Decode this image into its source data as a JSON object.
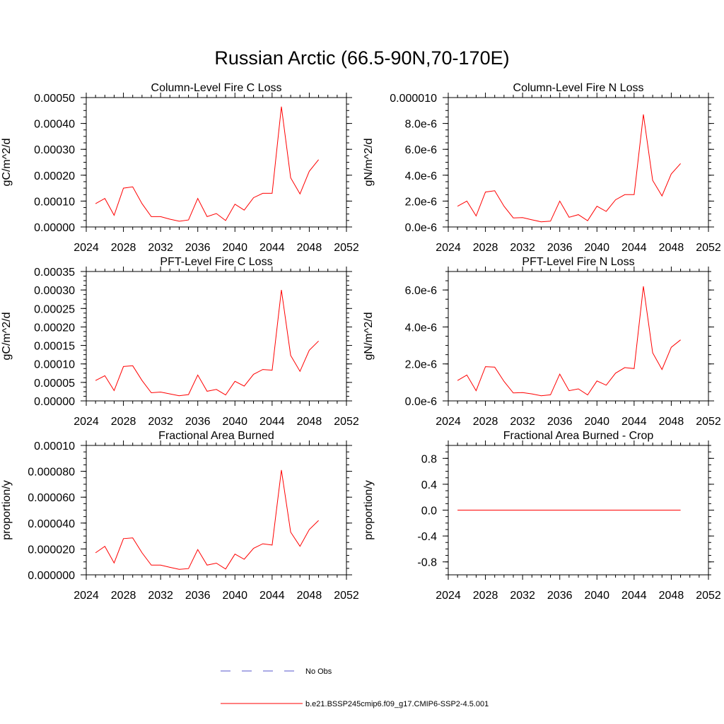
{
  "figure": {
    "title": "Russian Arctic (66.5-90N,70-170E)"
  },
  "legend": {
    "items": [
      {
        "label": "No Obs",
        "color": "#5555cc",
        "style": "dashed"
      },
      {
        "label": "b.e21.BSSP245cmip6.f09_g17.CMIP6-SSP2-4.5.001",
        "color": "#ff0000",
        "style": "solid"
      }
    ]
  },
  "chart_data": [
    {
      "type": "line",
      "title": "Column-Level Fire C Loss",
      "ylabel": "gC/m^2/d",
      "xlim": [
        2024,
        2052
      ],
      "ylim": [
        0,
        0.0005
      ],
      "xticks": [
        "2024",
        "2028",
        "2032",
        "2036",
        "2040",
        "2044",
        "2048",
        "2052"
      ],
      "yticks": [
        {
          "value": 0,
          "label": "0.00000"
        },
        {
          "value": 0.0001,
          "label": "0.00010"
        },
        {
          "value": 0.0002,
          "label": "0.00020"
        },
        {
          "value": 0.0003,
          "label": "0.00030"
        },
        {
          "value": 0.0004,
          "label": "0.00040"
        },
        {
          "value": 0.0005,
          "label": "0.00050"
        }
      ],
      "series": [
        {
          "color": "#ff0000",
          "x": [
            2025,
            2026,
            2027,
            2028,
            2029,
            2030,
            2031,
            2032,
            2033,
            2034,
            2035,
            2036,
            2037,
            2038,
            2039,
            2040,
            2041,
            2042,
            2043,
            2044,
            2045,
            2046,
            2047,
            2048,
            2049
          ],
          "y": [
            9e-05,
            0.00011,
            4.5e-05,
            0.00015,
            0.000155,
            9e-05,
            4e-05,
            4e-05,
            3e-05,
            2.2e-05,
            2.7e-05,
            0.00011,
            4e-05,
            5.2e-05,
            2.5e-05,
            8.8e-05,
            6.5e-05,
            0.000113,
            0.00013,
            0.00013,
            0.000465,
            0.00019,
            0.000128,
            0.000215,
            0.00026
          ]
        }
      ]
    },
    {
      "type": "line",
      "title": "Column-Level Fire N Loss",
      "ylabel": "gN/m^2/d",
      "xlim": [
        2024,
        2052
      ],
      "ylim": [
        0,
        1e-05
      ],
      "xticks": [
        "2024",
        "2028",
        "2032",
        "2036",
        "2040",
        "2044",
        "2048",
        "2052"
      ],
      "yticks": [
        {
          "value": 0,
          "label": "0.0e-6"
        },
        {
          "value": 2e-06,
          "label": "2.0e-6"
        },
        {
          "value": 4e-06,
          "label": "4.0e-6"
        },
        {
          "value": 6e-06,
          "label": "6.0e-6"
        },
        {
          "value": 8e-06,
          "label": "8.0e-6"
        },
        {
          "value": 1e-05,
          "label": "0.000010"
        }
      ],
      "series": [
        {
          "color": "#ff0000",
          "x": [
            2025,
            2026,
            2027,
            2028,
            2029,
            2030,
            2031,
            2032,
            2033,
            2034,
            2035,
            2036,
            2037,
            2038,
            2039,
            2040,
            2041,
            2042,
            2043,
            2044,
            2045,
            2046,
            2047,
            2048,
            2049
          ],
          "y": [
            1.6e-06,
            2e-06,
            8.5e-07,
            2.7e-06,
            2.8e-06,
            1.6e-06,
            7e-07,
            7.2e-07,
            5.5e-07,
            4e-07,
            4.5e-07,
            2e-06,
            7.5e-07,
            9.5e-07,
            4.8e-07,
            1.6e-06,
            1.2e-06,
            2.1e-06,
            2.5e-06,
            2.5e-06,
            8.7e-06,
            3.6e-06,
            2.4e-06,
            4.1e-06,
            4.9e-06
          ]
        }
      ]
    },
    {
      "type": "line",
      "title": "PFT-Level Fire C Loss",
      "ylabel": "gC/m^2/d",
      "xlim": [
        2024,
        2052
      ],
      "ylim": [
        0,
        0.00035
      ],
      "xticks": [
        "2024",
        "2028",
        "2032",
        "2036",
        "2040",
        "2044",
        "2048",
        "2052"
      ],
      "yticks": [
        {
          "value": 0,
          "label": "0.00000"
        },
        {
          "value": 5e-05,
          "label": "0.00005"
        },
        {
          "value": 0.0001,
          "label": "0.00010"
        },
        {
          "value": 0.00015,
          "label": "0.00015"
        },
        {
          "value": 0.0002,
          "label": "0.00020"
        },
        {
          "value": 0.00025,
          "label": "0.00025"
        },
        {
          "value": 0.0003,
          "label": "0.00030"
        },
        {
          "value": 0.00035,
          "label": "0.00035"
        }
      ],
      "series": [
        {
          "color": "#ff0000",
          "x": [
            2025,
            2026,
            2027,
            2028,
            2029,
            2030,
            2031,
            2032,
            2033,
            2034,
            2035,
            2036,
            2037,
            2038,
            2039,
            2040,
            2041,
            2042,
            2043,
            2044,
            2045,
            2046,
            2047,
            2048,
            2049
          ],
          "y": [
            5.5e-05,
            6.8e-05,
            2.8e-05,
            9.3e-05,
            9.5e-05,
            5.5e-05,
            2.2e-05,
            2.4e-05,
            1.9e-05,
            1.4e-05,
            1.7e-05,
            7e-05,
            2.6e-05,
            3.1e-05,
            1.6e-05,
            5.3e-05,
            4e-05,
            7.2e-05,
            8.5e-05,
            8.3e-05,
            0.0003,
            0.000123,
            8e-05,
            0.000137,
            0.000162
          ]
        }
      ]
    },
    {
      "type": "line",
      "title": "PFT-Level Fire N Loss",
      "ylabel": "gN/m^2/d",
      "xlim": [
        2024,
        2052
      ],
      "ylim": [
        0,
        7e-06
      ],
      "xticks": [
        "2024",
        "2028",
        "2032",
        "2036",
        "2040",
        "2044",
        "2048",
        "2052"
      ],
      "yticks": [
        {
          "value": 0,
          "label": "0.0e-6"
        },
        {
          "value": 2e-06,
          "label": "2.0e-6"
        },
        {
          "value": 4e-06,
          "label": "4.0e-6"
        },
        {
          "value": 6e-06,
          "label": "6.0e-6"
        }
      ],
      "series": [
        {
          "color": "#ff0000",
          "x": [
            2025,
            2026,
            2027,
            2028,
            2029,
            2030,
            2031,
            2032,
            2033,
            2034,
            2035,
            2036,
            2037,
            2038,
            2039,
            2040,
            2041,
            2042,
            2043,
            2044,
            2045,
            2046,
            2047,
            2048,
            2049
          ],
          "y": [
            1.1e-06,
            1.4e-06,
            5.5e-07,
            1.85e-06,
            1.83e-06,
            1.05e-06,
            4.3e-07,
            4.5e-07,
            3.8e-07,
            2.8e-07,
            3.3e-07,
            1.45e-06,
            5.5e-07,
            6.5e-07,
            3.2e-07,
            1.08e-06,
            8.5e-07,
            1.5e-06,
            1.8e-06,
            1.75e-06,
            6.2e-06,
            2.6e-06,
            1.7e-06,
            2.9e-06,
            3.3e-06
          ]
        }
      ]
    },
    {
      "type": "line",
      "title": "Fractional Area Burned",
      "ylabel": "proportion/y",
      "xlim": [
        2024,
        2052
      ],
      "ylim": [
        0,
        0.0001
      ],
      "xticks": [
        "2024",
        "2028",
        "2032",
        "2036",
        "2040",
        "2044",
        "2048",
        "2052"
      ],
      "yticks": [
        {
          "value": 0,
          "label": "0.000000"
        },
        {
          "value": 2e-05,
          "label": "0.000020"
        },
        {
          "value": 4e-05,
          "label": "0.000040"
        },
        {
          "value": 6e-05,
          "label": "0.000060"
        },
        {
          "value": 8e-05,
          "label": "0.000080"
        },
        {
          "value": 0.0001,
          "label": "0.00010"
        }
      ],
      "series": [
        {
          "color": "#ff0000",
          "x": [
            2025,
            2026,
            2027,
            2028,
            2029,
            2030,
            2031,
            2032,
            2033,
            2034,
            2035,
            2036,
            2037,
            2038,
            2039,
            2040,
            2041,
            2042,
            2043,
            2044,
            2045,
            2046,
            2047,
            2048,
            2049
          ],
          "y": [
            1.7e-05,
            2.2e-05,
            9.2e-06,
            2.8e-05,
            2.85e-05,
            1.7e-05,
            7.5e-06,
            7.5e-06,
            5.8e-06,
            4.2e-06,
            4.8e-06,
            1.95e-05,
            7.5e-06,
            9e-06,
            4.5e-06,
            1.6e-05,
            1.2e-05,
            2.05e-05,
            2.4e-05,
            2.3e-05,
            8.1e-05,
            3.3e-05,
            2.2e-05,
            3.5e-05,
            4.2e-05
          ]
        }
      ]
    },
    {
      "type": "line",
      "title": "Fractional Area Burned - Crop",
      "ylabel": "proportion/y",
      "xlim": [
        2024,
        2052
      ],
      "ylim": [
        -1,
        1
      ],
      "xticks": [
        "2024",
        "2028",
        "2032",
        "2036",
        "2040",
        "2044",
        "2048",
        "2052"
      ],
      "yticks": [
        {
          "value": -0.8,
          "label": "-0.8"
        },
        {
          "value": -0.4,
          "label": "-0.4"
        },
        {
          "value": 0,
          "label": "0.0"
        },
        {
          "value": 0.4,
          "label": "0.4"
        },
        {
          "value": 0.8,
          "label": "0.8"
        }
      ],
      "series": [
        {
          "color": "#ff0000",
          "x": [
            2025,
            2049
          ],
          "y": [
            0,
            0
          ]
        }
      ]
    }
  ]
}
